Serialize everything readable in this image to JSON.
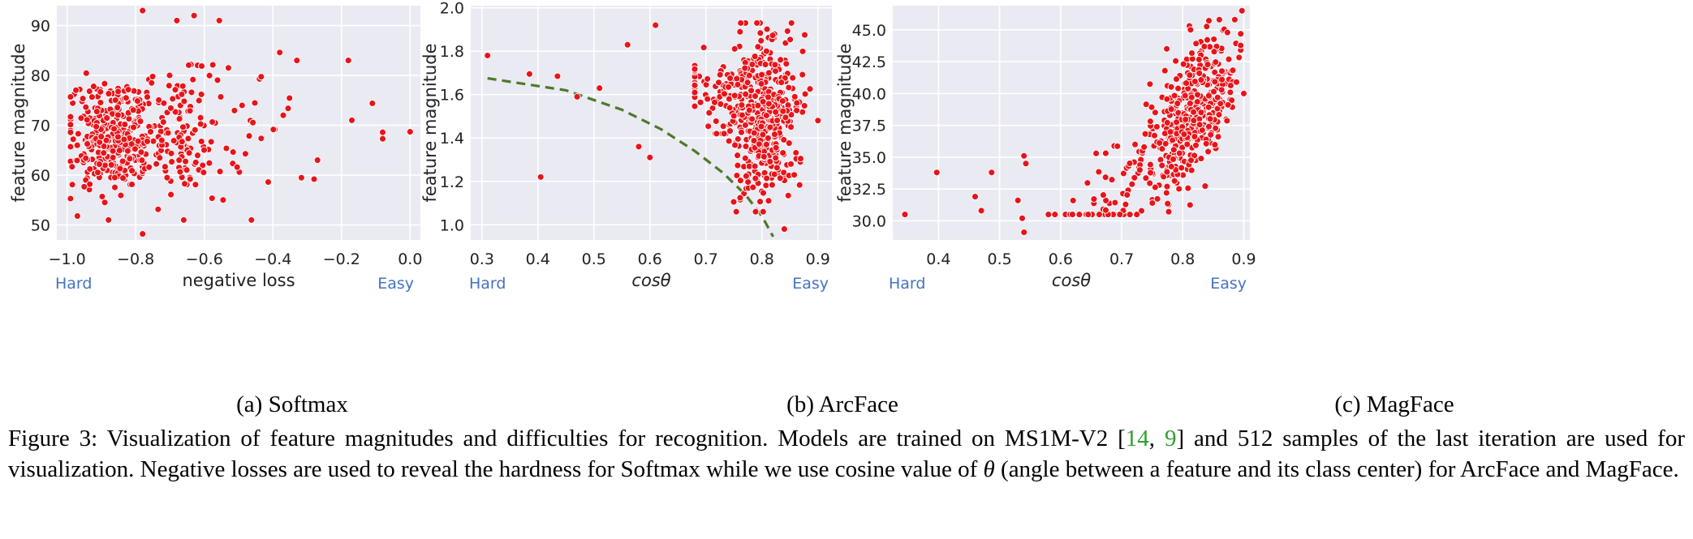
{
  "figure": {
    "caption": {
      "label": "Figure 3:",
      "part1": "Visualization of feature magnitudes and difficulties for recognition. Models are trained on MS1M-V2 [",
      "cite1": "14",
      "sep": ", ",
      "cite2": "9",
      "part2": "] and 512 samples of the last iteration are used for visualization. Negative losses are used to reveal the hardness for Softmax while we use cosine value of ",
      "theta": "θ",
      "part3": " (angle between a feature and its class center) for ArcFace and MagFace."
    },
    "subcaptions": [
      "(a) Softmax",
      "(b) ArcFace",
      "(c) MagFace"
    ],
    "hard_label": "Hard",
    "easy_label": "Easy",
    "colors": {
      "point": "#e8141a",
      "background": "#eaeaf2",
      "grid": "#ffffff",
      "curve": "#4d7a2a",
      "hardeasy": "#4472c4"
    }
  },
  "chart_data": [
    {
      "type": "scatter",
      "name": "softmax",
      "xlabel": "negative loss",
      "ylabel": "feature magnitude",
      "xlim": [
        -1.03,
        0.03
      ],
      "ylim": [
        47,
        94
      ],
      "xticks": [
        -1.0,
        -0.8,
        -0.6,
        -0.4,
        -0.2,
        0.0
      ],
      "xtick_labels": [
        "−1.0",
        "−0.8",
        "−0.6",
        "−0.4",
        "−0.2",
        "0.0"
      ],
      "yticks": [
        50,
        60,
        70,
        80,
        90
      ],
      "ytick_labels": [
        "50",
        "60",
        "70",
        "80",
        "90"
      ],
      "n_points": 512,
      "seed": 11,
      "grid": true,
      "notable_points": [
        [
          -0.78,
          93
        ],
        [
          -0.63,
          92
        ],
        [
          -0.78,
          48.2
        ],
        [
          -0.18,
          83
        ],
        [
          -0.11,
          74.4
        ],
        [
          -0.17,
          71
        ],
        [
          -0.08,
          68.6
        ],
        [
          -0.08,
          67.3
        ],
        [
          0.0,
          68.7
        ],
        [
          -0.27,
          63
        ],
        [
          -0.28,
          59.2
        ],
        [
          -0.38,
          84.6
        ],
        [
          -0.33,
          83
        ],
        [
          -0.97,
          51.8
        ],
        [
          -0.99,
          55.3
        ]
      ]
    },
    {
      "type": "scatter",
      "name": "arcface",
      "xlabel": "cosθ",
      "ylabel": "feature magnitude",
      "xlim": [
        0.28,
        0.925
      ],
      "ylim": [
        0.93,
        2.01
      ],
      "xticks": [
        0.3,
        0.4,
        0.5,
        0.6,
        0.7,
        0.8,
        0.9
      ],
      "xtick_labels": [
        "0.3",
        "0.4",
        "0.5",
        "0.6",
        "0.7",
        "0.8",
        "0.9"
      ],
      "yticks": [
        1.0,
        1.2,
        1.4,
        1.6,
        1.8,
        2.0
      ],
      "ytick_labels": [
        "1.0",
        "1.2",
        "1.4",
        "1.6",
        "1.8",
        "2.0"
      ],
      "n_points": 512,
      "seed": 23,
      "grid": true,
      "curve": {
        "style": "dashed",
        "x": [
          0.31,
          0.45,
          0.55,
          0.62,
          0.68,
          0.73,
          0.77,
          0.8,
          0.82
        ],
        "y": [
          1.675,
          1.62,
          1.53,
          1.44,
          1.34,
          1.24,
          1.14,
          1.04,
          0.945
        ]
      },
      "notable_points": [
        [
          0.31,
          1.78
        ],
        [
          0.385,
          1.695
        ],
        [
          0.405,
          1.22
        ],
        [
          0.435,
          1.685
        ],
        [
          0.47,
          1.59
        ],
        [
          0.51,
          1.63
        ],
        [
          0.61,
          1.92
        ],
        [
          0.56,
          1.83
        ],
        [
          0.58,
          1.36
        ],
        [
          0.6,
          1.31
        ],
        [
          0.84,
          0.98
        ],
        [
          0.9,
          1.48
        ]
      ]
    },
    {
      "type": "scatter",
      "name": "magface",
      "xlabel": "cosθ",
      "ylabel": "feature magnitude",
      "xlim": [
        0.325,
        0.91
      ],
      "ylim": [
        28.5,
        46.9
      ],
      "xticks": [
        0.4,
        0.5,
        0.6,
        0.7,
        0.8,
        0.9
      ],
      "xtick_labels": [
        "0.4",
        "0.5",
        "0.6",
        "0.7",
        "0.8",
        "0.9"
      ],
      "yticks": [
        30.0,
        32.5,
        35.0,
        37.5,
        40.0,
        42.5,
        45.0
      ],
      "ytick_labels": [
        "30.0",
        "32.5",
        "35.0",
        "37.5",
        "40.0",
        "42.5",
        "45.0"
      ],
      "n_points": 512,
      "seed": 37,
      "grid": true,
      "notable_points": [
        [
          0.345,
          30.5
        ],
        [
          0.397,
          33.8
        ],
        [
          0.46,
          31.9
        ],
        [
          0.47,
          30.8
        ],
        [
          0.487,
          33.8
        ],
        [
          0.53,
          31.6
        ],
        [
          0.537,
          30.2
        ],
        [
          0.54,
          29.1
        ],
        [
          0.54,
          35.1
        ],
        [
          0.543,
          34.5
        ],
        [
          0.897,
          46.5
        ],
        [
          0.9,
          40.0
        ]
      ]
    }
  ]
}
